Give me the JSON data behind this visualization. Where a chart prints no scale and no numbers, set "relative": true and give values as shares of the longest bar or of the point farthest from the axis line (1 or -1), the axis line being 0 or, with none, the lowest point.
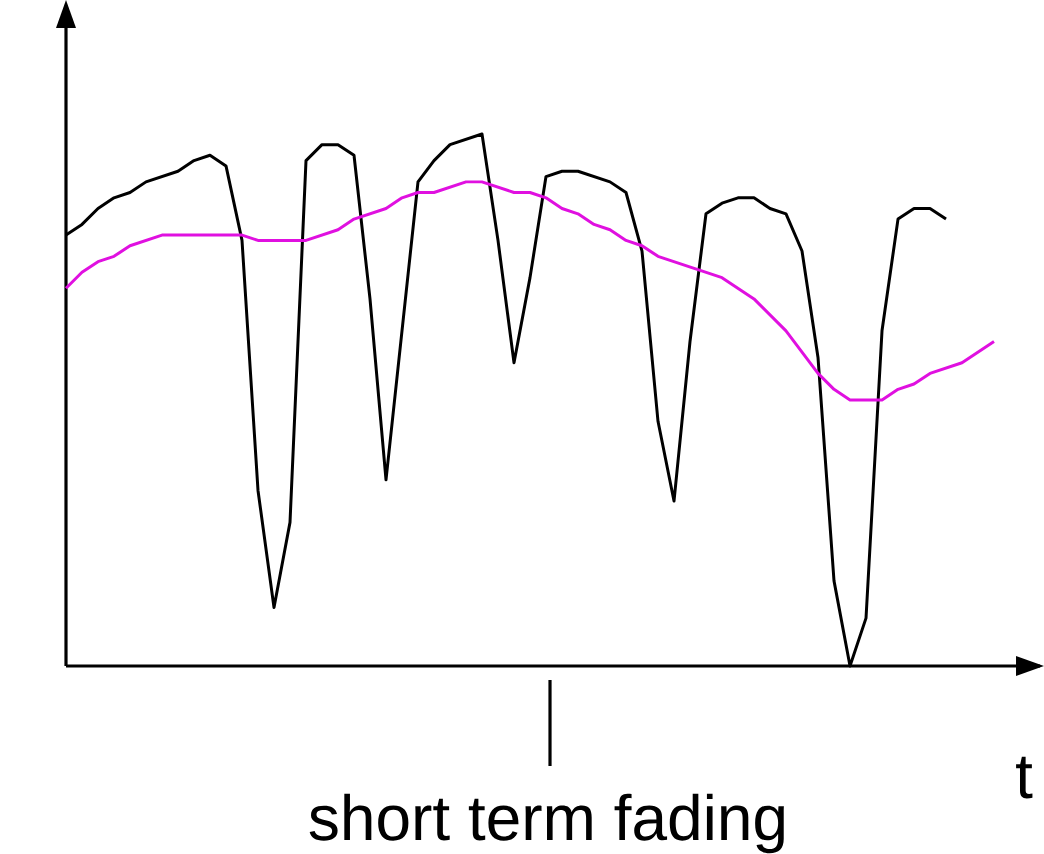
{
  "chart_data": {
    "type": "line",
    "relative": true,
    "xlabel": "t",
    "annotations": [
      "short term fading"
    ],
    "categories": [
      null,
      null,
      null,
      null,
      null,
      null,
      null,
      null,
      null,
      null,
      null,
      null,
      null,
      null,
      null,
      null,
      null,
      null,
      null,
      null,
      null,
      null,
      null,
      null,
      null,
      null,
      null,
      null,
      null,
      null,
      null,
      null,
      null,
      null,
      null,
      null,
      null,
      null,
      null,
      null,
      null,
      null,
      null,
      null,
      null,
      null,
      null,
      null,
      null,
      null,
      null,
      null,
      null,
      null,
      null,
      null,
      null,
      null,
      null
    ],
    "series": [
      {
        "color": "#000000",
        "values": [
          0.81,
          0.83,
          0.86,
          0.88,
          0.89,
          0.91,
          0.92,
          0.93,
          0.95,
          0.96,
          0.94,
          0.8,
          0.33,
          0.11,
          0.27,
          0.95,
          0.98,
          0.98,
          0.96,
          0.69,
          0.35,
          0.63,
          0.91,
          0.95,
          0.98,
          0.99,
          1.0,
          0.8,
          0.57,
          0.73,
          0.92,
          0.93,
          0.93,
          0.92,
          0.91,
          0.89,
          0.78,
          0.46,
          0.31,
          0.61,
          0.85,
          0.87,
          0.88,
          0.88,
          0.86,
          0.85,
          0.78,
          0.58,
          0.16,
          0.0,
          0.09,
          0.63,
          0.84,
          0.86,
          0.86,
          0.84,
          null,
          null,
          null
        ]
      },
      {
        "color": "#e010e0",
        "values": [
          0.71,
          0.74,
          0.76,
          0.77,
          0.79,
          0.8,
          0.81,
          0.81,
          0.81,
          0.81,
          0.81,
          0.81,
          0.8,
          0.8,
          0.8,
          0.8,
          0.81,
          0.82,
          0.84,
          0.85,
          0.86,
          0.88,
          0.89,
          0.89,
          0.9,
          0.91,
          0.91,
          0.9,
          0.89,
          0.89,
          0.88,
          0.86,
          0.85,
          0.83,
          0.82,
          0.8,
          0.79,
          0.77,
          0.76,
          0.75,
          0.74,
          0.73,
          0.71,
          0.69,
          0.66,
          0.63,
          0.59,
          0.55,
          0.52,
          0.5,
          0.5,
          0.5,
          0.52,
          0.53,
          0.55,
          0.56,
          0.57,
          0.59,
          0.61
        ]
      }
    ]
  }
}
